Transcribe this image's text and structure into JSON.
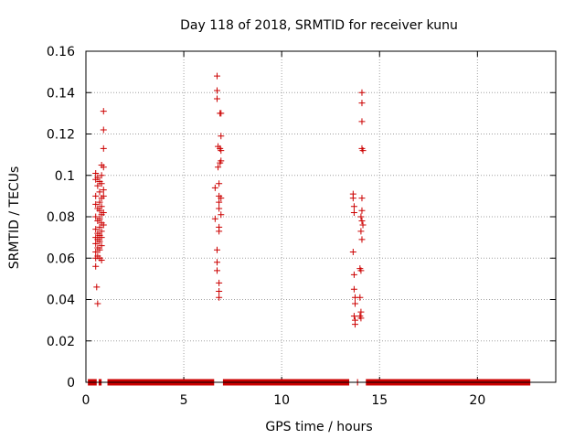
{
  "chart_data": {
    "type": "scatter",
    "title": "Day 118 of 2018, SRMTID for receiver kunu",
    "xlabel": "GPS time / hours",
    "ylabel": "SRMTID / TECUs",
    "xlim": [
      0,
      24
    ],
    "ylim": [
      0,
      0.16
    ],
    "xticks": [
      0,
      5,
      10,
      15,
      20
    ],
    "xtick_labels": [
      "0",
      "5",
      "10",
      "15",
      "20"
    ],
    "yticks": [
      0,
      0.02,
      0.04,
      0.06,
      0.08,
      0.1,
      0.12,
      0.14,
      0.16
    ],
    "ytick_labels": [
      "0",
      "0.02",
      "0.04",
      "0.06",
      "0.08",
      "0.1",
      "0.12",
      "0.14",
      "0.16"
    ],
    "grid": true,
    "marker": "+",
    "series": [
      {
        "name": "SRMTID",
        "color": "#cc0000",
        "points": [
          [
            0.5,
            0.101
          ],
          [
            0.5,
            0.098
          ],
          [
            0.5,
            0.09
          ],
          [
            0.5,
            0.086
          ],
          [
            0.5,
            0.08
          ],
          [
            0.5,
            0.074
          ],
          [
            0.5,
            0.07
          ],
          [
            0.5,
            0.067
          ],
          [
            0.5,
            0.063
          ],
          [
            0.5,
            0.06
          ],
          [
            0.5,
            0.056
          ],
          [
            0.55,
            0.046
          ],
          [
            0.6,
            0.038
          ],
          [
            0.6,
            0.099
          ],
          [
            0.6,
            0.095
          ],
          [
            0.6,
            0.084
          ],
          [
            0.6,
            0.078
          ],
          [
            0.6,
            0.072
          ],
          [
            0.6,
            0.069
          ],
          [
            0.6,
            0.065
          ],
          [
            0.6,
            0.061
          ],
          [
            0.7,
            0.097
          ],
          [
            0.7,
            0.092
          ],
          [
            0.7,
            0.087
          ],
          [
            0.7,
            0.083
          ],
          [
            0.7,
            0.079
          ],
          [
            0.7,
            0.075
          ],
          [
            0.7,
            0.071
          ],
          [
            0.7,
            0.068
          ],
          [
            0.7,
            0.064
          ],
          [
            0.7,
            0.06
          ],
          [
            0.8,
            0.105
          ],
          [
            0.8,
            0.1
          ],
          [
            0.8,
            0.096
          ],
          [
            0.8,
            0.089
          ],
          [
            0.8,
            0.085
          ],
          [
            0.8,
            0.081
          ],
          [
            0.8,
            0.077
          ],
          [
            0.8,
            0.073
          ],
          [
            0.8,
            0.07
          ],
          [
            0.8,
            0.066
          ],
          [
            0.8,
            0.059
          ],
          [
            0.9,
            0.131
          ],
          [
            0.9,
            0.122
          ],
          [
            0.9,
            0.113
          ],
          [
            0.9,
            0.104
          ],
          [
            0.9,
            0.093
          ],
          [
            0.9,
            0.09
          ],
          [
            0.9,
            0.082
          ],
          [
            0.9,
            0.076
          ],
          [
            6.6,
            0.094
          ],
          [
            6.6,
            0.079
          ],
          [
            6.7,
            0.064
          ],
          [
            6.7,
            0.058
          ],
          [
            6.7,
            0.054
          ],
          [
            6.7,
            0.148
          ],
          [
            6.7,
            0.141
          ],
          [
            6.7,
            0.137
          ],
          [
            6.75,
            0.114
          ],
          [
            6.75,
            0.104
          ],
          [
            6.8,
            0.096
          ],
          [
            6.8,
            0.09
          ],
          [
            6.8,
            0.087
          ],
          [
            6.8,
            0.084
          ],
          [
            6.8,
            0.075
          ],
          [
            6.8,
            0.073
          ],
          [
            6.8,
            0.048
          ],
          [
            6.8,
            0.044
          ],
          [
            6.8,
            0.041
          ],
          [
            6.85,
            0.13
          ],
          [
            6.85,
            0.113
          ],
          [
            6.85,
            0.106
          ],
          [
            6.9,
            0.13
          ],
          [
            6.9,
            0.119
          ],
          [
            6.9,
            0.112
          ],
          [
            6.9,
            0.107
          ],
          [
            6.9,
            0.089
          ],
          [
            6.9,
            0.081
          ],
          [
            13.65,
            0.091
          ],
          [
            13.65,
            0.089
          ],
          [
            13.7,
            0.085
          ],
          [
            13.7,
            0.082
          ],
          [
            13.65,
            0.063
          ],
          [
            13.7,
            0.052
          ],
          [
            13.7,
            0.045
          ],
          [
            13.75,
            0.041
          ],
          [
            13.75,
            0.038
          ],
          [
            13.7,
            0.032
          ],
          [
            13.75,
            0.03
          ],
          [
            13.75,
            0.028
          ],
          [
            14.0,
            0.055
          ],
          [
            14.05,
            0.054
          ],
          [
            14.0,
            0.041
          ],
          [
            14.05,
            0.034
          ],
          [
            14.0,
            0.032
          ],
          [
            14.05,
            0.031
          ],
          [
            14.1,
            0.14
          ],
          [
            14.1,
            0.135
          ],
          [
            14.1,
            0.126
          ],
          [
            14.1,
            0.113
          ],
          [
            14.15,
            0.112
          ],
          [
            14.1,
            0.089
          ],
          [
            14.1,
            0.083
          ],
          [
            14.05,
            0.08
          ],
          [
            14.1,
            0.078
          ],
          [
            14.15,
            0.076
          ],
          [
            14.05,
            0.073
          ],
          [
            14.1,
            0.069
          ]
        ],
        "zero_baseline_segments": [
          [
            0.1,
            0.55
          ],
          [
            0.65,
            0.8
          ],
          [
            1.1,
            6.55
          ],
          [
            7.0,
            13.45
          ],
          [
            13.85,
            13.9
          ],
          [
            14.3,
            22.7
          ]
        ]
      }
    ]
  }
}
